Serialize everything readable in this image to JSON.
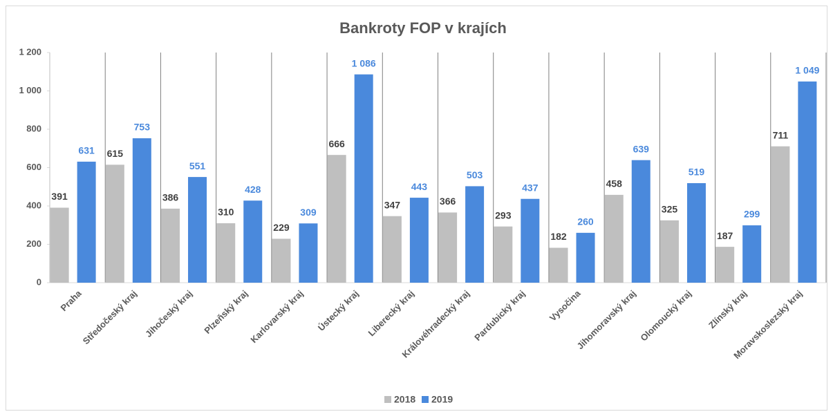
{
  "chart_data": {
    "type": "bar",
    "title": "Bankroty FOP v krajích",
    "categories": [
      "Praha",
      "Středočeský kraj",
      "Jihočeský kraj",
      "Plzeňský kraj",
      "Karlovarský kraj",
      "Ústecký kraj",
      "Liberecký kraj",
      "Královéhradecký kraj",
      "Pardubický kraj",
      "Vysočina",
      "Jihomoravský kraj",
      "Olomoucký kraj",
      "Zlínský kraj",
      "Moravskoslezský kraj"
    ],
    "series": [
      {
        "name": "2018",
        "color": "#bfbfbf",
        "values": [
          391,
          615,
          386,
          310,
          229,
          666,
          347,
          366,
          293,
          182,
          458,
          325,
          187,
          711
        ]
      },
      {
        "name": "2019",
        "color": "#4a89dc",
        "values": [
          631,
          753,
          551,
          428,
          309,
          1086,
          443,
          503,
          437,
          260,
          639,
          519,
          299,
          1049
        ],
        "value_labels": [
          "631",
          "753",
          "551",
          "428",
          "309",
          "1 086",
          "443",
          "503",
          "437",
          "260",
          "639",
          "519",
          "299",
          "1 049"
        ]
      }
    ],
    "ylim": [
      0,
      1200
    ],
    "yticks": [
      0,
      200,
      400,
      600,
      800,
      {
        "value": 1000,
        "label": "1 000"
      },
      {
        "value": 1200,
        "label": "1 200"
      }
    ],
    "legend": "bottom"
  }
}
